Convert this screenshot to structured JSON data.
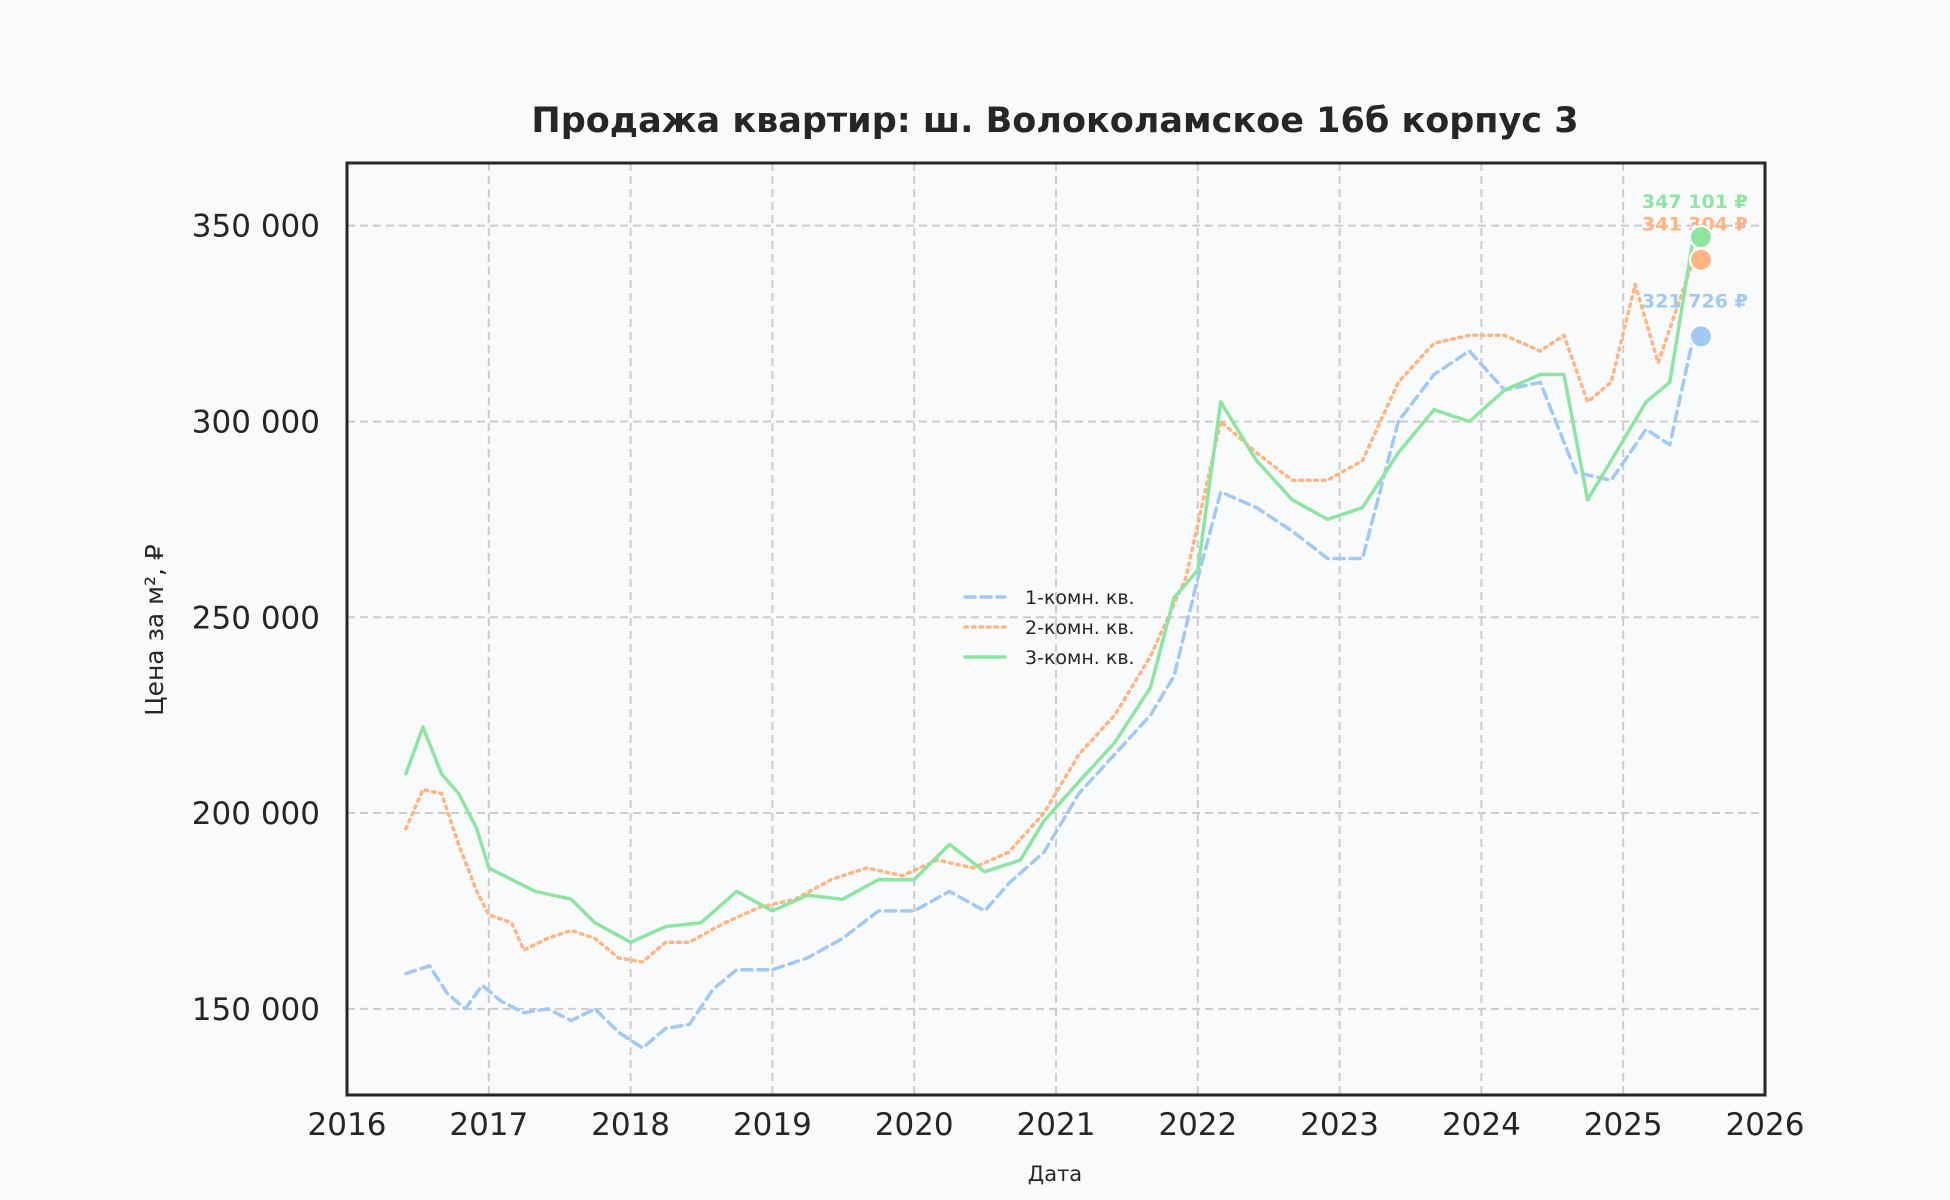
{
  "chart_data": {
    "type": "line",
    "title": "Продажа квартир: ш. Волоколамское 16б корпус 3",
    "xlabel": "Дата",
    "ylabel": "Цена за м², ₽",
    "x_ticks": [
      "2016",
      "2017",
      "2018",
      "2019",
      "2020",
      "2021",
      "2022",
      "2023",
      "2024",
      "2025",
      "2026"
    ],
    "y_ticks": [
      "150 000",
      "200 000",
      "250 000",
      "300 000",
      "350 000"
    ],
    "xlim": [
      "2016-01-01",
      "2026-01-01"
    ],
    "ylim": [
      128000,
      366000
    ],
    "grid": true,
    "legend_position": "center",
    "series": [
      {
        "name": "1-комн. кв.",
        "color": "#a1c9f4",
        "style": "dashed",
        "end_label": "321 726 ₽",
        "end_value": 321726,
        "points": [
          [
            "2016-06-01",
            159000
          ],
          [
            "2016-08-01",
            161000
          ],
          [
            "2016-09-15",
            154000
          ],
          [
            "2016-11-01",
            150000
          ],
          [
            "2016-12-15",
            156000
          ],
          [
            "2017-02-01",
            152000
          ],
          [
            "2017-04-01",
            149000
          ],
          [
            "2017-06-01",
            150000
          ],
          [
            "2017-08-01",
            147000
          ],
          [
            "2017-10-01",
            150000
          ],
          [
            "2017-12-01",
            144000
          ],
          [
            "2018-02-01",
            140000
          ],
          [
            "2018-04-01",
            145000
          ],
          [
            "2018-06-01",
            146000
          ],
          [
            "2018-08-01",
            155000
          ],
          [
            "2018-10-01",
            160000
          ],
          [
            "2019-01-01",
            160000
          ],
          [
            "2019-04-01",
            163000
          ],
          [
            "2019-07-01",
            168000
          ],
          [
            "2019-10-01",
            175000
          ],
          [
            "2020-01-01",
            175000
          ],
          [
            "2020-04-01",
            180000
          ],
          [
            "2020-07-01",
            175000
          ],
          [
            "2020-09-01",
            182000
          ],
          [
            "2020-12-01",
            190000
          ],
          [
            "2021-03-01",
            205000
          ],
          [
            "2021-06-01",
            215000
          ],
          [
            "2021-09-01",
            225000
          ],
          [
            "2021-11-01",
            235000
          ],
          [
            "2022-01-01",
            260000
          ],
          [
            "2022-03-01",
            282000
          ],
          [
            "2022-06-01",
            278000
          ],
          [
            "2022-09-01",
            272000
          ],
          [
            "2022-12-01",
            265000
          ],
          [
            "2023-03-01",
            265000
          ],
          [
            "2023-06-01",
            300000
          ],
          [
            "2023-09-01",
            312000
          ],
          [
            "2023-12-01",
            318000
          ],
          [
            "2024-03-01",
            308000
          ],
          [
            "2024-06-01",
            310000
          ],
          [
            "2024-09-01",
            287000
          ],
          [
            "2024-12-01",
            285000
          ],
          [
            "2025-03-01",
            298000
          ],
          [
            "2025-05-01",
            294000
          ],
          [
            "2025-07-01",
            321726
          ]
        ]
      },
      {
        "name": "2-комн. кв.",
        "color": "#ffb482",
        "style": "dotted",
        "end_label": "341 304 ₽",
        "end_value": 341304,
        "points": [
          [
            "2016-06-01",
            196000
          ],
          [
            "2016-07-15",
            206000
          ],
          [
            "2016-09-01",
            205000
          ],
          [
            "2016-10-15",
            192000
          ],
          [
            "2016-12-01",
            180000
          ],
          [
            "2017-01-01",
            174000
          ],
          [
            "2017-03-01",
            172000
          ],
          [
            "2017-04-01",
            165000
          ],
          [
            "2017-06-01",
            168000
          ],
          [
            "2017-08-01",
            170000
          ],
          [
            "2017-10-01",
            168000
          ],
          [
            "2017-12-01",
            163000
          ],
          [
            "2018-02-01",
            162000
          ],
          [
            "2018-04-01",
            167000
          ],
          [
            "2018-06-01",
            167000
          ],
          [
            "2018-09-01",
            172000
          ],
          [
            "2018-12-01",
            176000
          ],
          [
            "2019-03-01",
            178000
          ],
          [
            "2019-06-01",
            183000
          ],
          [
            "2019-09-01",
            186000
          ],
          [
            "2019-12-01",
            184000
          ],
          [
            "2020-03-01",
            188000
          ],
          [
            "2020-06-01",
            186000
          ],
          [
            "2020-09-01",
            190000
          ],
          [
            "2020-12-01",
            200000
          ],
          [
            "2021-03-01",
            215000
          ],
          [
            "2021-06-01",
            225000
          ],
          [
            "2021-09-01",
            240000
          ],
          [
            "2021-12-01",
            260000
          ],
          [
            "2022-03-01",
            300000
          ],
          [
            "2022-06-01",
            292000
          ],
          [
            "2022-09-01",
            285000
          ],
          [
            "2022-12-01",
            285000
          ],
          [
            "2023-03-01",
            290000
          ],
          [
            "2023-06-01",
            310000
          ],
          [
            "2023-09-01",
            320000
          ],
          [
            "2023-12-01",
            322000
          ],
          [
            "2024-03-01",
            322000
          ],
          [
            "2024-06-01",
            318000
          ],
          [
            "2024-08-01",
            322000
          ],
          [
            "2024-10-01",
            305000
          ],
          [
            "2024-12-01",
            310000
          ],
          [
            "2025-02-01",
            335000
          ],
          [
            "2025-04-01",
            315000
          ],
          [
            "2025-07-01",
            341304
          ]
        ]
      },
      {
        "name": "3-комн. кв.",
        "color": "#8de5a1",
        "style": "solid",
        "end_label": "347 101 ₽",
        "end_value": 347101,
        "points": [
          [
            "2016-06-01",
            210000
          ],
          [
            "2016-07-15",
            222000
          ],
          [
            "2016-09-01",
            210000
          ],
          [
            "2016-10-15",
            205000
          ],
          [
            "2016-12-01",
            196000
          ],
          [
            "2017-01-01",
            186000
          ],
          [
            "2017-03-01",
            183000
          ],
          [
            "2017-05-01",
            180000
          ],
          [
            "2017-08-01",
            178000
          ],
          [
            "2017-10-01",
            172000
          ],
          [
            "2018-01-01",
            167000
          ],
          [
            "2018-04-01",
            171000
          ],
          [
            "2018-07-01",
            172000
          ],
          [
            "2018-10-01",
            180000
          ],
          [
            "2019-01-01",
            175000
          ],
          [
            "2019-04-01",
            179000
          ],
          [
            "2019-07-01",
            178000
          ],
          [
            "2019-10-01",
            183000
          ],
          [
            "2020-01-01",
            183000
          ],
          [
            "2020-04-01",
            192000
          ],
          [
            "2020-07-01",
            185000
          ],
          [
            "2020-10-01",
            188000
          ],
          [
            "2020-12-01",
            198000
          ],
          [
            "2021-03-01",
            208000
          ],
          [
            "2021-06-01",
            218000
          ],
          [
            "2021-09-01",
            232000
          ],
          [
            "2021-11-01",
            255000
          ],
          [
            "2022-01-01",
            262000
          ],
          [
            "2022-03-01",
            305000
          ],
          [
            "2022-06-01",
            290000
          ],
          [
            "2022-09-01",
            280000
          ],
          [
            "2022-12-01",
            275000
          ],
          [
            "2023-03-01",
            278000
          ],
          [
            "2023-06-01",
            292000
          ],
          [
            "2023-09-01",
            303000
          ],
          [
            "2023-12-01",
            300000
          ],
          [
            "2024-03-01",
            308000
          ],
          [
            "2024-06-01",
            312000
          ],
          [
            "2024-08-01",
            312000
          ],
          [
            "2024-10-01",
            280000
          ],
          [
            "2024-12-01",
            290000
          ],
          [
            "2025-03-01",
            305000
          ],
          [
            "2025-05-01",
            310000
          ],
          [
            "2025-07-01",
            347101
          ]
        ]
      }
    ]
  }
}
